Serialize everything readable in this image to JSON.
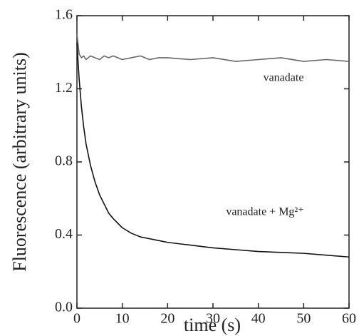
{
  "chart_data": {
    "type": "line",
    "xlabel": "time (s)",
    "ylabel": "Fluorescence (arbitrary units)",
    "x": [
      0,
      0.5,
      1,
      1.5,
      2,
      3,
      4,
      5,
      6,
      7,
      8,
      10,
      12,
      14,
      16,
      18,
      20,
      25,
      30,
      35,
      40,
      45,
      50,
      55,
      60
    ],
    "series": [
      {
        "name": "vanadate",
        "color": "#666666",
        "values": [
          1.5,
          1.39,
          1.37,
          1.38,
          1.36,
          1.38,
          1.37,
          1.36,
          1.38,
          1.37,
          1.38,
          1.36,
          1.37,
          1.38,
          1.36,
          1.37,
          1.37,
          1.36,
          1.37,
          1.35,
          1.36,
          1.37,
          1.35,
          1.36,
          1.35
        ]
      },
      {
        "name": "vanadate + Mg²⁺",
        "color": "#111111",
        "values": [
          1.45,
          1.25,
          1.1,
          0.99,
          0.9,
          0.78,
          0.69,
          0.62,
          0.57,
          0.52,
          0.49,
          0.44,
          0.41,
          0.39,
          0.38,
          0.37,
          0.36,
          0.345,
          0.33,
          0.32,
          0.31,
          0.305,
          0.3,
          0.29,
          0.28
        ]
      }
    ],
    "xlim": [
      0,
      60
    ],
    "xticks": [
      0,
      10,
      20,
      30,
      40,
      50,
      60
    ],
    "ylim": [
      0,
      1.6
    ],
    "yticks": [
      {
        "value": 0,
        "label": "0.0"
      },
      0.4,
      0.8,
      1.2,
      1.6
    ]
  }
}
